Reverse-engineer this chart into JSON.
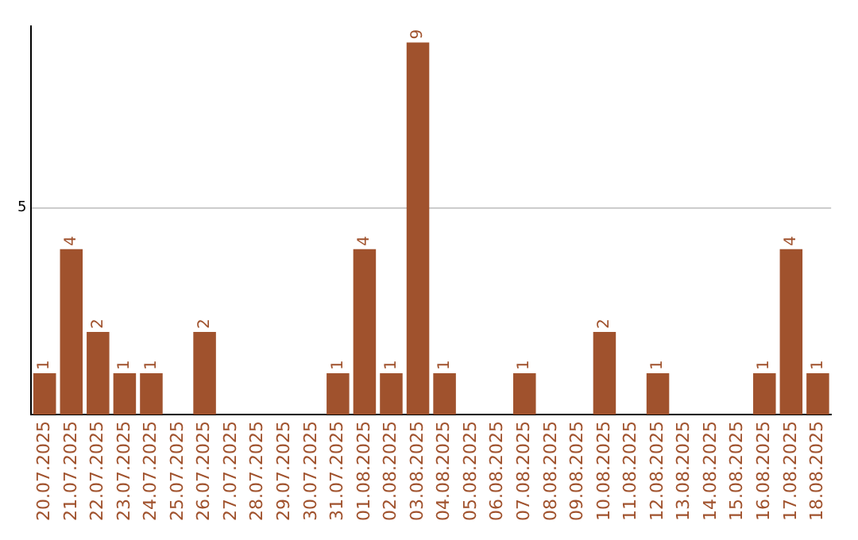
{
  "chart_data": {
    "type": "bar",
    "categories": [
      "20.07.2025",
      "21.07.2025",
      "22.07.2025",
      "23.07.2025",
      "24.07.2025",
      "25.07.2025",
      "26.07.2025",
      "27.07.2025",
      "28.07.2025",
      "29.07.2025",
      "30.07.2025",
      "31.07.2025",
      "01.08.2025",
      "02.08.2025",
      "03.08.2025",
      "04.08.2025",
      "05.08.2025",
      "06.08.2025",
      "07.08.2025",
      "08.08.2025",
      "09.08.2025",
      "10.08.2025",
      "11.08.2025",
      "12.08.2025",
      "13.08.2025",
      "14.08.2025",
      "15.08.2025",
      "16.08.2025",
      "17.08.2025",
      "18.08.2025"
    ],
    "values": [
      1,
      4,
      2,
      1,
      1,
      0,
      2,
      0,
      0,
      0,
      0,
      1,
      4,
      1,
      9,
      1,
      0,
      0,
      1,
      0,
      0,
      2,
      0,
      1,
      0,
      0,
      0,
      1,
      4,
      1
    ],
    "value_labels": [
      "1",
      "4",
      "2",
      "1",
      "1",
      null,
      "2",
      null,
      null,
      null,
      null,
      "1",
      "4",
      "1",
      "9",
      "1",
      null,
      null,
      "1",
      null,
      null,
      "2",
      null,
      "1",
      null,
      null,
      null,
      "1",
      "4",
      "1"
    ],
    "color": "#a0522d",
    "ylim": [
      0,
      9.4
    ],
    "yticks": [
      5
    ],
    "grid": "y",
    "legend": false
  }
}
